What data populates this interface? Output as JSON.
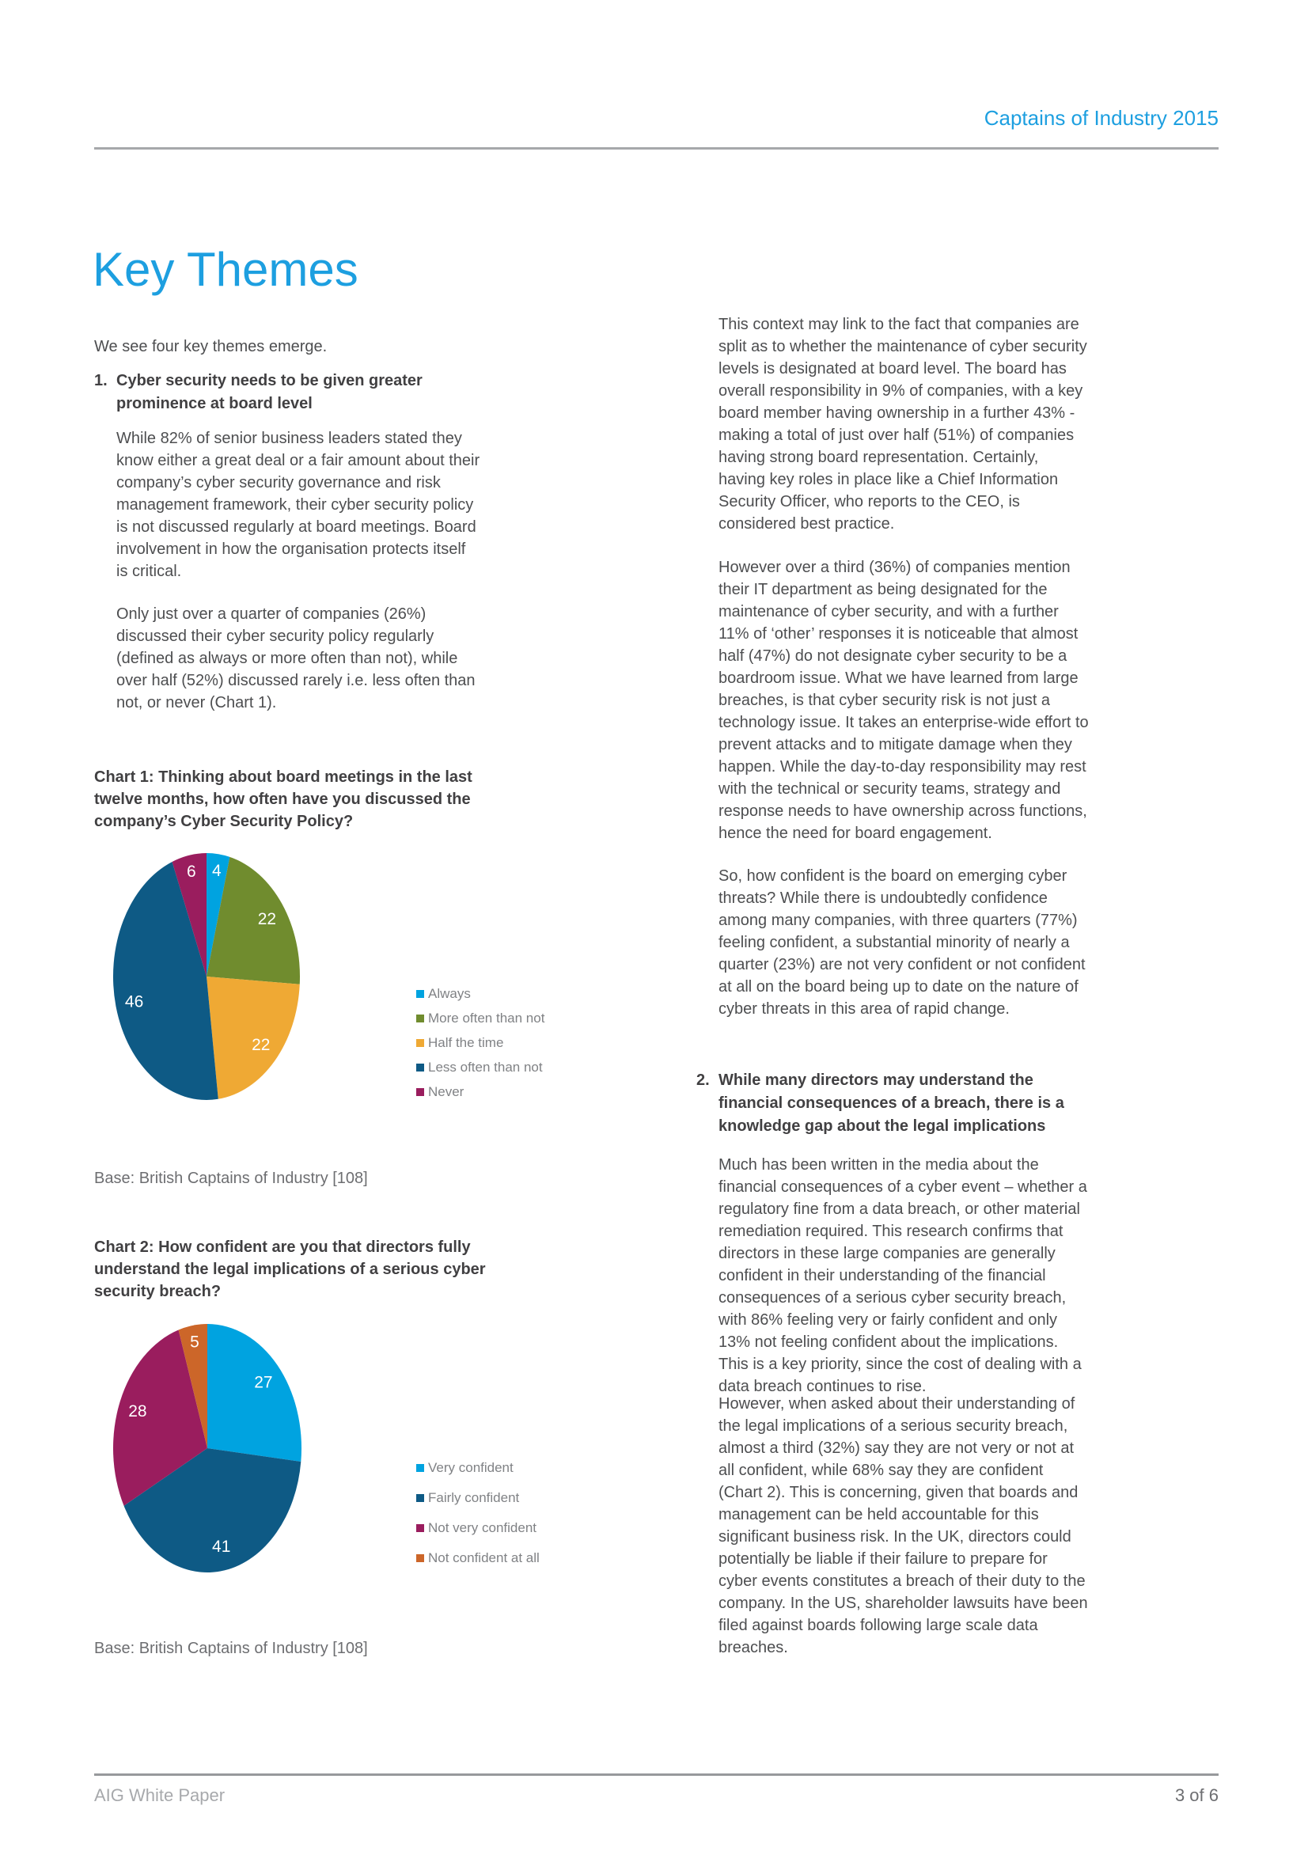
{
  "header": {
    "title": "Captains of Industry 2015"
  },
  "page_title": "Key Themes",
  "colors": {
    "accent_blue": "#1d9fe0",
    "body_text": "#4d4e50",
    "heading_text": "#414042",
    "muted_gray": "#6d6e71",
    "legend_gray": "#808285",
    "rule_gray": "#a6a8ab"
  },
  "left_column": {
    "intro": "We see four key themes emerge.",
    "item1": {
      "number": "1.",
      "heading": "Cyber security needs to be given greater prominence at board level"
    },
    "para1": "While 82% of senior business leaders stated they know either a great deal or a fair amount about their company’s cyber security governance and risk management framework, their cyber security policy is not discussed regularly at board meetings. Board involvement in how the organisation protects itself is critical.",
    "para2": "Only just over a quarter of companies (26%) discussed their cyber security policy regularly (defined as always or more often than not), while over half (52%) discussed rarely i.e. less often than not, or never (Chart 1)."
  },
  "right_column": {
    "para1": "This context may link to the fact that companies are split as to whether the maintenance of cyber security levels is designated at board level.  The board has overall responsibility in 9% of companies, with a key board member having ownership in a further 43% - making a total of just over half (51%) of companies having strong board representation.  Certainly, having key roles in place like a Chief Information Security Officer, who reports to the CEO, is considered best practice.",
    "para2": "However over a third (36%) of companies mention their IT department as being designated for the maintenance of cyber security, and with a further 11% of ‘other’ responses it is noticeable that almost half (47%) do not designate cyber security to be a boardroom issue. What we have learned from large breaches, is that cyber security risk is not just a technology issue. It takes an enterprise-wide effort to prevent attacks and to mitigate damage when they happen. While the day-to-day responsibility may rest with the technical or security teams, strategy and response needs to have ownership across functions, hence the need for board engagement.",
    "para3": "So, how confident is the board on emerging cyber threats? While there is undoubtedly confidence among many companies, with three quarters (77%) feeling confident, a substantial minority of nearly a quarter (23%) are not very confident or not confident at all on the board being up to date on the nature of cyber threats in this area of rapid change.",
    "item2": {
      "number": "2.",
      "heading": "While many directors may understand the financial consequences of a breach, there is a knowledge gap about the legal implications"
    },
    "para4": "Much has been written in the media about the financial consequences of a cyber event – whether a regulatory fine from a data breach, or other material remediation required.  This research confirms that directors in these large companies are generally confident in their understanding of the financial consequences of a serious cyber security breach, with 86% feeling very or fairly confident and only 13% not feeling confident about the implications. This is a key priority, since the cost of dealing with a data breach continues to rise.",
    "para5": "However, when asked about their understanding of the legal implications of a serious security breach, almost a third (32%) say they are not very or not at all confident, while 68% say they are confident (Chart 2).  This is concerning, given that boards and management can be held accountable for this significant business risk. In the UK, directors could potentially be liable if their failure to prepare for cyber events constitutes a breach of their duty to the company.  In the US, shareholder lawsuits have been filed against boards following large scale data breaches."
  },
  "chart_data": [
    {
      "type": "pie",
      "title": "Chart 1: Thinking about board meetings in the last twelve months, how often have you discussed the company’s Cyber Security Policy?",
      "categories": [
        "Always",
        "More often than not",
        "Half the time",
        "Less often than not",
        "Never"
      ],
      "values": [
        4,
        22,
        22,
        46,
        6
      ],
      "colors": [
        "#00a3e0",
        "#708c2e",
        "#efa934",
        "#0e5a85",
        "#9a1d5e"
      ],
      "legend_position": "right",
      "label_color": "#ffffff",
      "base_note": "Base: British Captains of Industry [108]"
    },
    {
      "type": "pie",
      "title": "Chart 2: How confident are you that directors fully understand the legal implications of a serious cyber security breach?",
      "categories": [
        "Very confident",
        "Fairly confident",
        "Not very confident",
        "Not confident at all"
      ],
      "values": [
        27,
        41,
        28,
        5
      ],
      "colors": [
        "#00a3e0",
        "#0e5a85",
        "#9a1d5e",
        "#cc6629"
      ],
      "legend_position": "right",
      "label_color": "#ffffff",
      "base_note": "Base: British Captains of Industry [108]"
    }
  ],
  "footer": {
    "left": "AIG White Paper",
    "right": "3 of 6"
  }
}
